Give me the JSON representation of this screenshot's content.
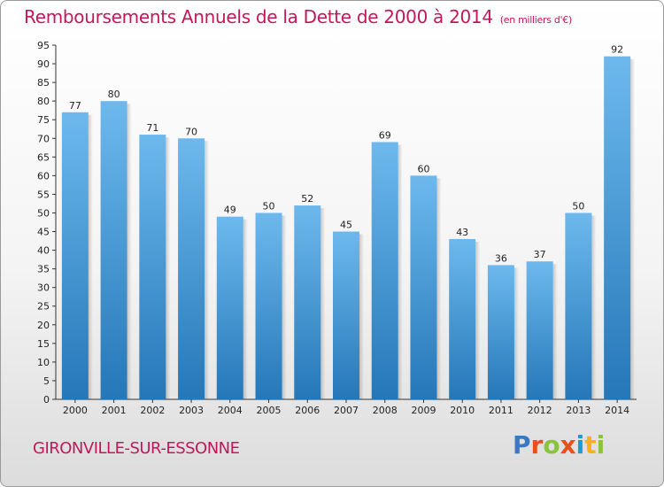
{
  "title": "Remboursements Annuels de la Dette de 2000 à 2014",
  "subtitle": "(en milliers d'€)",
  "town": "GIRONVILLE-SUR-ESSONNE",
  "logo": [
    "P",
    "r",
    "o",
    "x",
    "i",
    "t",
    "i"
  ],
  "logo_colors": [
    "#3a78c2",
    "#e94e1b",
    "#8ac43f",
    "#e94e1b",
    "#1b9ad6",
    "#f6b21b",
    "#8ac43f"
  ],
  "colors": {
    "bar_top": "#6db9ee",
    "bar_bottom": "#2577b8",
    "accent": "#c2185b"
  },
  "chart_data": {
    "type": "bar",
    "title": "Remboursements Annuels de la Dette de 2000 à 2014",
    "subtitle": "(en milliers d'€)",
    "categories": [
      "2000",
      "2001",
      "2002",
      "2003",
      "2004",
      "2005",
      "2006",
      "2007",
      "2008",
      "2009",
      "2010",
      "2011",
      "2012",
      "2013",
      "2014"
    ],
    "values": [
      77,
      80,
      71,
      70,
      49,
      50,
      52,
      45,
      69,
      60,
      43,
      36,
      37,
      50,
      92
    ],
    "ylim": [
      0,
      95
    ],
    "yticks": [
      0,
      5,
      10,
      15,
      20,
      25,
      30,
      35,
      40,
      45,
      50,
      55,
      60,
      65,
      70,
      75,
      80,
      85,
      90,
      95
    ],
    "grid": false,
    "legend": "none"
  }
}
